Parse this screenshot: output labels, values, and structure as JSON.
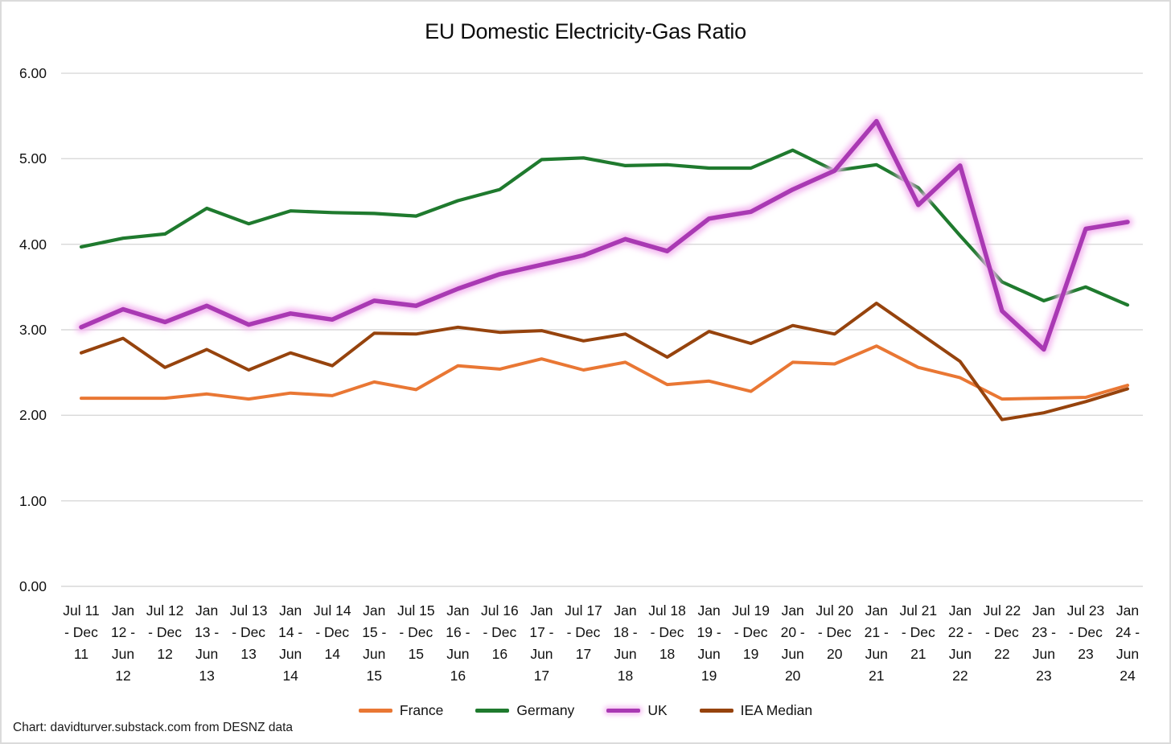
{
  "chart_data": {
    "type": "line",
    "title": "EU Domestic Electricity-Gas Ratio",
    "xlabel": "",
    "ylabel": "",
    "ylim": [
      0,
      6
    ],
    "y_ticks": [
      "0.00",
      "1.00",
      "2.00",
      "3.00",
      "4.00",
      "5.00",
      "6.00"
    ],
    "grid": "horizontal-only",
    "legend_position": "bottom-center",
    "categories": [
      "Jul 11 - Dec 11",
      "Jan 12 - Jun 12",
      "Jul 12 - Dec 12",
      "Jan 13 - Jun 13",
      "Jul 13 - Dec 13",
      "Jan 14 - Jun 14",
      "Jul 14 - Dec 14",
      "Jan 15 - Jun 15",
      "Jul 15 - Dec 15",
      "Jan 16 - Jun 16",
      "Jul 16 - Dec 16",
      "Jan 17 - Jun 17",
      "Jul 17 - Dec 17",
      "Jan 18 - Jun 18",
      "Jul 18 - Dec 18",
      "Jan 19 - Jun 19",
      "Jul 19 - Dec 19",
      "Jan 20 - Jun 20",
      "Jul 20 - Dec 20",
      "Jan 21 - Jun 21",
      "Jul 21 - Dec 21",
      "Jan 22 - Jun 22",
      "Jul 22 - Dec 22",
      "Jan 23 - Jun 23",
      "Jul 23 - Dec 23",
      "Jan 24 - Jun 24"
    ],
    "x_tick_lines": [
      [
        "Jul 11",
        "- Dec",
        "11"
      ],
      [
        "Jan",
        "12 -",
        "Jun",
        "12"
      ],
      [
        "Jul 12",
        "- Dec",
        "12"
      ],
      [
        "Jan",
        "13 -",
        "Jun",
        "13"
      ],
      [
        "Jul 13",
        "- Dec",
        "13"
      ],
      [
        "Jan",
        "14 -",
        "Jun",
        "14"
      ],
      [
        "Jul 14",
        "- Dec",
        "14"
      ],
      [
        "Jan",
        "15 -",
        "Jun",
        "15"
      ],
      [
        "Jul 15",
        "- Dec",
        "15"
      ],
      [
        "Jan",
        "16 -",
        "Jun",
        "16"
      ],
      [
        "Jul 16",
        "- Dec",
        "16"
      ],
      [
        "Jan",
        "17 -",
        "Jun",
        "17"
      ],
      [
        "Jul 17",
        "- Dec",
        "17"
      ],
      [
        "Jan",
        "18 -",
        "Jun",
        "18"
      ],
      [
        "Jul 18",
        "- Dec",
        "18"
      ],
      [
        "Jan",
        "19 -",
        "Jun",
        "19"
      ],
      [
        "Jul 19",
        "- Dec",
        "19"
      ],
      [
        "Jan",
        "20 -",
        "Jun",
        "20"
      ],
      [
        "Jul 20",
        "- Dec",
        "20"
      ],
      [
        "Jan",
        "21 -",
        "Jun",
        "21"
      ],
      [
        "Jul 21",
        "- Dec",
        "21"
      ],
      [
        "Jan",
        "22 -",
        "Jun",
        "22"
      ],
      [
        "Jul 22",
        "- Dec",
        "22"
      ],
      [
        "Jan",
        "23 -",
        "Jun",
        "23"
      ],
      [
        "Jul 23",
        "- Dec",
        "23"
      ],
      [
        "Jan",
        "24 -",
        "Jun",
        "24"
      ]
    ],
    "series": [
      {
        "name": "France",
        "color": "#E97734",
        "line_width": 4,
        "values": [
          2.2,
          2.2,
          2.2,
          2.25,
          2.19,
          2.26,
          2.23,
          2.39,
          2.3,
          2.58,
          2.54,
          2.66,
          2.53,
          2.62,
          2.36,
          2.4,
          2.28,
          2.62,
          2.6,
          2.81,
          2.56,
          2.44,
          2.19,
          2.2,
          2.21,
          2.35
        ]
      },
      {
        "name": "Germany",
        "color": "#1F7A2E",
        "line_width": 4.2,
        "values": [
          3.97,
          4.07,
          4.12,
          4.42,
          4.24,
          4.39,
          4.37,
          4.36,
          4.33,
          4.51,
          4.64,
          4.99,
          5.01,
          4.92,
          4.93,
          4.89,
          4.89,
          5.1,
          4.86,
          4.93,
          4.66,
          4.1,
          3.56,
          3.34,
          3.5,
          3.29
        ]
      },
      {
        "name": "UK",
        "color": "#A939B3",
        "glow_color": "#F3B4EF",
        "line_width": 5.5,
        "values": [
          3.03,
          3.24,
          3.09,
          3.28,
          3.06,
          3.19,
          3.12,
          3.34,
          3.28,
          3.48,
          3.65,
          3.76,
          3.87,
          4.06,
          3.92,
          4.3,
          4.38,
          4.64,
          4.86,
          5.44,
          4.46,
          4.92,
          3.22,
          2.77,
          4.18,
          4.26
        ]
      },
      {
        "name": "IEA Median",
        "color": "#96430D",
        "line_width": 4,
        "values": [
          2.73,
          2.9,
          2.56,
          2.77,
          2.53,
          2.73,
          2.58,
          2.96,
          2.95,
          3.03,
          2.97,
          2.99,
          2.87,
          2.95,
          2.68,
          2.98,
          2.84,
          3.05,
          2.95,
          3.31,
          2.97,
          2.63,
          1.95,
          2.03,
          2.16,
          2.31
        ]
      }
    ]
  },
  "footer": {
    "source": "Chart: davidturver.substack.com from DESNZ data"
  },
  "style": {
    "gridline_color": "#D9D9D9",
    "border_color": "#DBDBDB",
    "background": "#FFFFFF"
  }
}
